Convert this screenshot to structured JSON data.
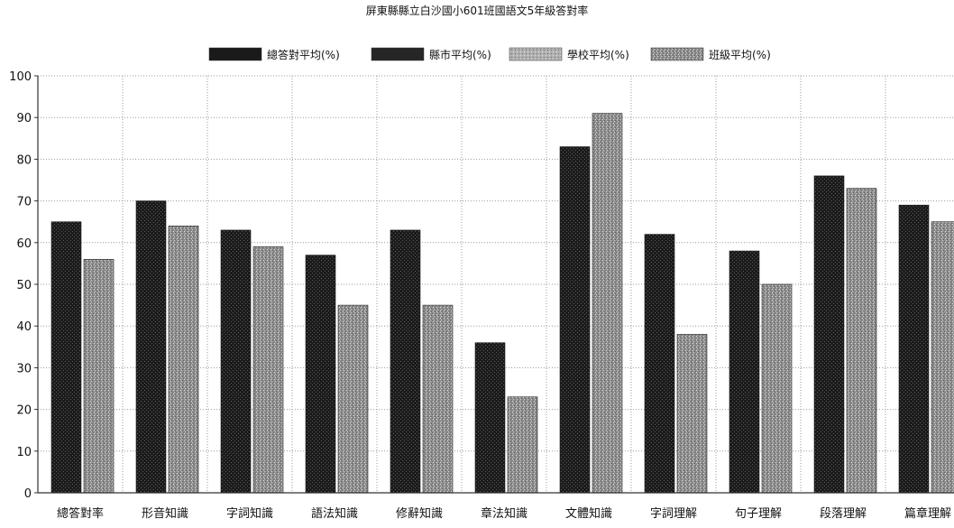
{
  "chart_data": {
    "type": "bar",
    "title": "屏東縣縣立白沙國小601班國語文5年級答對率",
    "legend_position": "top",
    "legend": [
      {
        "label": "總答對平均(%)",
        "color": "#1e1e1e"
      },
      {
        "label": "縣市平均(%)",
        "color": "#2a2a2a"
      },
      {
        "label": "學校平均(%)",
        "color": "#b3b3b3"
      },
      {
        "label": "班級平均(%)",
        "color": "#9c9c9c"
      }
    ],
    "categories": [
      "總答對率",
      "形音知識",
      "字詞知識",
      "語法知識",
      "修辭知識",
      "章法知識",
      "文體知識",
      "字詞理解",
      "句子理解",
      "段落理解",
      "篇章理解"
    ],
    "series": [
      {
        "name": "縣市平均(%)",
        "color": "#1e1e1e",
        "values": [
          65,
          70,
          63,
          57,
          63,
          36,
          83,
          62,
          58,
          76,
          69
        ]
      },
      {
        "name": "班級平均(%)",
        "color": "#9c9c9c",
        "values": [
          56,
          64,
          59,
          45,
          45,
          23,
          91,
          38,
          50,
          73,
          65
        ]
      }
    ],
    "ylim": [
      0,
      100
    ],
    "yticks": [
      0,
      10,
      20,
      30,
      40,
      50,
      60,
      70,
      80,
      90,
      100
    ],
    "grid": true
  }
}
